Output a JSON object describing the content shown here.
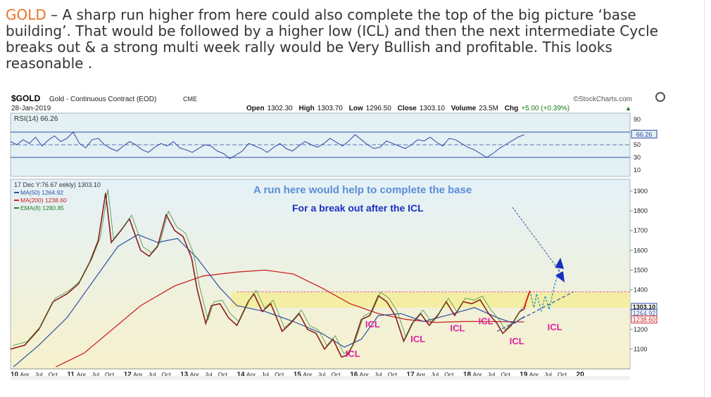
{
  "headline": {
    "ticker": "GOLD",
    "text": " –  A sharp run higher from here could also complete the top of the big picture ‘base building’.  That would  be followed by a higher low (ICL)  and then the next intermediate Cycle breaks out & a strong  multi week rally would be Very Bullish and profitable.   This looks reasonable ."
  },
  "chart_data": {
    "type": "line",
    "header": {
      "symbol": "$GOLD",
      "name": "Gold - Continuous Contract (EOD)",
      "exchange": "CME",
      "date": "28-Jan-2019",
      "source": "©StockCharts.com",
      "ohlc_text": {
        "open_label": "Open",
        "open": "1302.30",
        "high_label": "High",
        "high": "1303.70",
        "low_label": "Low",
        "low": "1296.50",
        "close_label": "Close",
        "close": "1303.10",
        "volume_label": "Volume",
        "volume": "23.5M",
        "chg_label": "Chg",
        "chg": "+5.00 (+0.39%)"
      }
    },
    "rsi_panel": {
      "label": "RSI(14) 66.26",
      "value_tag": "66.26",
      "ticks": [
        "90",
        "70",
        "50",
        "30",
        "10"
      ],
      "ylim": [
        0,
        100
      ],
      "values": [
        55,
        50,
        58,
        52,
        62,
        48,
        57,
        64,
        55,
        60,
        70,
        52,
        45,
        58,
        60,
        50,
        44,
        40,
        48,
        55,
        50,
        42,
        38,
        46,
        52,
        48,
        55,
        45,
        42,
        38,
        44,
        50,
        48,
        40,
        36,
        28,
        34,
        40,
        52,
        48,
        44,
        38,
        46,
        52,
        44,
        40,
        48,
        55,
        50,
        46,
        52,
        60,
        54,
        48,
        56,
        66,
        58,
        50,
        44,
        46,
        56,
        52,
        48,
        44,
        50,
        58,
        56,
        62,
        54,
        48,
        60,
        58,
        52,
        46,
        42,
        36,
        30,
        36,
        44,
        50,
        56,
        62,
        66
      ]
    },
    "legend": {
      "weekly": "17 Dec Y:76.67 eekly) 1303.10",
      "items": [
        {
          "label": "MA(50) 1264.92",
          "color": "#2f4fa3"
        },
        {
          "label": "MA(200) 1238.60",
          "color": "#cc2222"
        },
        {
          "label": "EMA(8) 1280.85",
          "color": "#2a7a2a"
        }
      ]
    },
    "price_axis": {
      "ylim": [
        1000,
        1960
      ],
      "ticks": [
        1100,
        1200,
        1300,
        1400,
        1500,
        1600,
        1700,
        1800,
        1900
      ],
      "right_tags": [
        "1303.10",
        "1264.92",
        "1238.60"
      ]
    },
    "x_axis": {
      "xlim": [
        2010.0,
        2020.95
      ],
      "labels": [
        {
          "t": "10",
          "x": 2010.0,
          "bold": true
        },
        {
          "t": "Apr",
          "x": 2010.25
        },
        {
          "t": "Jul",
          "x": 2010.5
        },
        {
          "t": "Oct",
          "x": 2010.75
        },
        {
          "t": "11",
          "x": 2011.0,
          "bold": true
        },
        {
          "t": "Apr",
          "x": 2011.25
        },
        {
          "t": "Jul",
          "x": 2011.5
        },
        {
          "t": "Oct",
          "x": 2011.75
        },
        {
          "t": "12",
          "x": 2012.0,
          "bold": true
        },
        {
          "t": "Apr",
          "x": 2012.25
        },
        {
          "t": "Jul",
          "x": 2012.5
        },
        {
          "t": "Oct",
          "x": 2012.75
        },
        {
          "t": "13",
          "x": 2013.0,
          "bold": true
        },
        {
          "t": "Apr",
          "x": 2013.25
        },
        {
          "t": "Jul",
          "x": 2013.5
        },
        {
          "t": "Oct",
          "x": 2013.75
        },
        {
          "t": "14",
          "x": 2014.0,
          "bold": true
        },
        {
          "t": "Apr",
          "x": 2014.25
        },
        {
          "t": "Jul",
          "x": 2014.5
        },
        {
          "t": "Oct",
          "x": 2014.75
        },
        {
          "t": "15",
          "x": 2015.0,
          "bold": true
        },
        {
          "t": "Apr",
          "x": 2015.25
        },
        {
          "t": "Jul",
          "x": 2015.5
        },
        {
          "t": "Oct",
          "x": 2015.75
        },
        {
          "t": "16",
          "x": 2016.0,
          "bold": true
        },
        {
          "t": "Apr",
          "x": 2016.25
        },
        {
          "t": "Jul",
          "x": 2016.5
        },
        {
          "t": "Oct",
          "x": 2016.75
        },
        {
          "t": "17",
          "x": 2017.0,
          "bold": true
        },
        {
          "t": "Apr",
          "x": 2017.25
        },
        {
          "t": "Jul",
          "x": 2017.5
        },
        {
          "t": "Oct",
          "x": 2017.75
        },
        {
          "t": "18",
          "x": 2018.0,
          "bold": true
        },
        {
          "t": "Apr",
          "x": 2018.25
        },
        {
          "t": "Jul",
          "x": 2018.5
        },
        {
          "t": "Oct",
          "x": 2018.75
        },
        {
          "t": "19",
          "x": 2019.0,
          "bold": true
        },
        {
          "t": "Apr",
          "x": 2019.25
        },
        {
          "t": "Jul",
          "x": 2019.5
        },
        {
          "t": "Oct",
          "x": 2019.75
        },
        {
          "t": "20",
          "x": 2020.0,
          "bold": true
        }
      ]
    },
    "price": [
      [
        2010.0,
        1100
      ],
      [
        2010.25,
        1120
      ],
      [
        2010.5,
        1200
      ],
      [
        2010.75,
        1340
      ],
      [
        2011.0,
        1380
      ],
      [
        2011.2,
        1430
      ],
      [
        2011.4,
        1540
      ],
      [
        2011.55,
        1650
      ],
      [
        2011.68,
        1890
      ],
      [
        2011.78,
        1640
      ],
      [
        2011.95,
        1700
      ],
      [
        2012.1,
        1760
      ],
      [
        2012.3,
        1600
      ],
      [
        2012.45,
        1570
      ],
      [
        2012.6,
        1620
      ],
      [
        2012.75,
        1780
      ],
      [
        2012.9,
        1700
      ],
      [
        2013.05,
        1670
      ],
      [
        2013.2,
        1560
      ],
      [
        2013.3,
        1400
      ],
      [
        2013.45,
        1230
      ],
      [
        2013.55,
        1320
      ],
      [
        2013.7,
        1330
      ],
      [
        2013.85,
        1260
      ],
      [
        2014.0,
        1220
      ],
      [
        2014.2,
        1340
      ],
      [
        2014.3,
        1380
      ],
      [
        2014.45,
        1290
      ],
      [
        2014.6,
        1330
      ],
      [
        2014.8,
        1190
      ],
      [
        2014.95,
        1230
      ],
      [
        2015.1,
        1280
      ],
      [
        2015.25,
        1200
      ],
      [
        2015.4,
        1180
      ],
      [
        2015.55,
        1100
      ],
      [
        2015.7,
        1150
      ],
      [
        2015.85,
        1060
      ],
      [
        2015.95,
        1070
      ],
      [
        2016.05,
        1120
      ],
      [
        2016.2,
        1250
      ],
      [
        2016.35,
        1270
      ],
      [
        2016.5,
        1370
      ],
      [
        2016.65,
        1340
      ],
      [
        2016.8,
        1270
      ],
      [
        2016.95,
        1140
      ],
      [
        2017.1,
        1230
      ],
      [
        2017.25,
        1280
      ],
      [
        2017.4,
        1220
      ],
      [
        2017.55,
        1270
      ],
      [
        2017.7,
        1340
      ],
      [
        2017.85,
        1270
      ],
      [
        2018.0,
        1340
      ],
      [
        2018.15,
        1330
      ],
      [
        2018.3,
        1350
      ],
      [
        2018.45,
        1280
      ],
      [
        2018.6,
        1230
      ],
      [
        2018.7,
        1180
      ],
      [
        2018.85,
        1220
      ],
      [
        2019.0,
        1290
      ],
      [
        2019.08,
        1303
      ]
    ],
    "ma50": [
      [
        2010.05,
        1010
      ],
      [
        2010.5,
        1120
      ],
      [
        2011.0,
        1260
      ],
      [
        2011.5,
        1460
      ],
      [
        2011.9,
        1620
      ],
      [
        2012.25,
        1680
      ],
      [
        2012.6,
        1640
      ],
      [
        2012.95,
        1660
      ],
      [
        2013.3,
        1560
      ],
      [
        2013.7,
        1410
      ],
      [
        2014.0,
        1320
      ],
      [
        2014.5,
        1290
      ],
      [
        2015.0,
        1240
      ],
      [
        2015.5,
        1180
      ],
      [
        2015.9,
        1110
      ],
      [
        2016.2,
        1150
      ],
      [
        2016.5,
        1270
      ],
      [
        2016.9,
        1280
      ],
      [
        2017.3,
        1240
      ],
      [
        2017.7,
        1270
      ],
      [
        2018.2,
        1310
      ],
      [
        2018.6,
        1260
      ],
      [
        2018.9,
        1230
      ],
      [
        2019.08,
        1265
      ]
    ],
    "ma200": [
      [
        2010.8,
        1010
      ],
      [
        2011.3,
        1080
      ],
      [
        2011.8,
        1200
      ],
      [
        2012.3,
        1320
      ],
      [
        2012.9,
        1420
      ],
      [
        2013.4,
        1470
      ],
      [
        2014.0,
        1490
      ],
      [
        2014.5,
        1500
      ],
      [
        2015.0,
        1480
      ],
      [
        2015.5,
        1410
      ],
      [
        2016.0,
        1330
      ],
      [
        2016.5,
        1280
      ],
      [
        2017.0,
        1250
      ],
      [
        2017.5,
        1235
      ],
      [
        2018.0,
        1240
      ],
      [
        2018.5,
        1240
      ],
      [
        2019.08,
        1238
      ]
    ],
    "projection": [
      [
        2019.08,
        1303
      ],
      [
        2019.1,
        1330
      ],
      [
        2019.18,
        1395
      ],
      [
        2019.25,
        1310
      ],
      [
        2019.3,
        1380
      ],
      [
        2019.38,
        1290
      ],
      [
        2019.45,
        1370
      ],
      [
        2019.52,
        1300
      ],
      [
        2019.62,
        1430
      ],
      [
        2019.72,
        1520
      ]
    ],
    "uptrend_line": [
      [
        2018.6,
        1190
      ],
      [
        2019.95,
        1390
      ]
    ],
    "resistance_level": 1390,
    "shaded_zone": [
      1310,
      1390
    ],
    "icl_labels": [
      {
        "text": "ICL",
        "x": 2016.05,
        "y": 1060
      },
      {
        "text": "ICL",
        "x": 2016.4,
        "y": 1210
      },
      {
        "text": "ICL",
        "x": 2017.2,
        "y": 1135
      },
      {
        "text": "ICL",
        "x": 2017.9,
        "y": 1190
      },
      {
        "text": "ICL",
        "x": 2018.4,
        "y": 1225
      },
      {
        "text": "ICL",
        "x": 2018.95,
        "y": 1125
      },
      {
        "text": "ICL",
        "x": 2019.62,
        "y": 1195
      }
    ],
    "annotations": [
      {
        "text": "A run here would help to complete  the base",
        "color": "#5b8ed6"
      },
      {
        "text": "For a break out after the ICL",
        "color": "#1a2fbf"
      }
    ]
  }
}
